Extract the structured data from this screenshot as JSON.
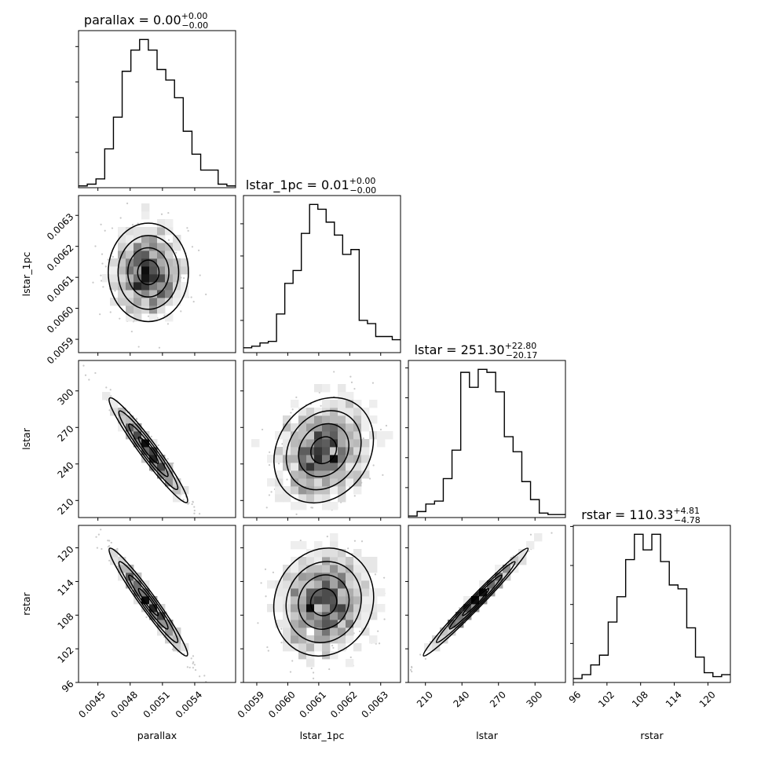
{
  "chart_data": {
    "type": "corner",
    "parameters": [
      {
        "name": "parallax",
        "axis_label": "parallax",
        "title": {
          "label": "parallax = 0.00",
          "upper": "+0.00",
          "lower": "−0.00"
        },
        "range": [
          0.00432,
          0.00578
        ],
        "ticks": [
          0.0045,
          0.0048,
          0.0051,
          0.0054
        ],
        "tick_labels": [
          "0.0045",
          "0.0048",
          "0.0051",
          "0.0054"
        ]
      },
      {
        "name": "lstar_1pc",
        "axis_label": "lstar_1pc",
        "title": {
          "label": "lstar_1pc = 0.01",
          "upper": "+0.00",
          "lower": "−0.00"
        },
        "range": [
          0.005857,
          0.006364
        ],
        "ticks": [
          0.0059,
          0.006,
          0.0061,
          0.0062,
          0.0063
        ],
        "tick_labels": [
          "0.0059",
          "0.0060",
          "0.0061",
          "0.0062",
          "0.0063"
        ]
      },
      {
        "name": "lstar",
        "axis_label": "lstar",
        "title": {
          "label": "lstar = 251.30",
          "upper": "+22.80",
          "lower": "−20.17"
        },
        "range": [
          196.0,
          325.0
        ],
        "ticks": [
          210,
          240,
          270,
          300
        ],
        "tick_labels": [
          "210",
          "240",
          "270",
          "300"
        ]
      },
      {
        "name": "rstar",
        "axis_label": "rstar",
        "title": {
          "label": "rstar = 110.33",
          "upper": "+4.81",
          "lower": "−4.78"
        },
        "range": [
          96.0,
          124.0
        ],
        "ticks": [
          96,
          102,
          108,
          114,
          120
        ],
        "tick_labels": [
          "96",
          "102",
          "108",
          "114",
          "120"
        ]
      }
    ],
    "histograms": [
      {
        "param": "parallax",
        "counts": [
          1,
          2,
          5,
          22,
          40,
          66,
          78,
          84,
          78,
          67,
          61,
          51,
          32,
          19,
          10,
          10,
          2,
          1
        ]
      },
      {
        "param": "lstar_1pc",
        "counts": [
          3,
          4,
          6,
          7,
          24,
          43,
          51,
          74,
          92,
          89,
          81,
          73,
          61,
          64,
          20,
          18,
          10,
          10,
          8
        ]
      },
      {
        "param": "lstar",
        "counts": [
          1,
          4,
          9,
          11,
          26,
          45,
          97,
          87,
          99,
          97,
          84,
          54,
          44,
          24,
          12,
          3,
          2,
          2
        ]
      },
      {
        "param": "rstar",
        "counts": [
          2,
          4,
          9,
          14,
          31,
          44,
          63,
          76,
          68,
          76,
          62,
          50,
          48,
          28,
          13,
          5,
          3,
          4
        ]
      }
    ],
    "posterior": {
      "means": [
        0.004969,
        0.006116,
        251.3,
        110.33
      ],
      "sigmas": [
        0.000182,
        7.94e-05,
        21.5,
        4.8
      ],
      "correlations": [
        [
          1.0,
          0.0,
          -0.97,
          -0.975
        ],
        [
          0.0,
          1.0,
          0.22,
          0.11
        ],
        [
          -0.97,
          0.22,
          1.0,
          0.99
        ],
        [
          -0.975,
          0.11,
          0.99,
          1.0
        ]
      ]
    }
  }
}
